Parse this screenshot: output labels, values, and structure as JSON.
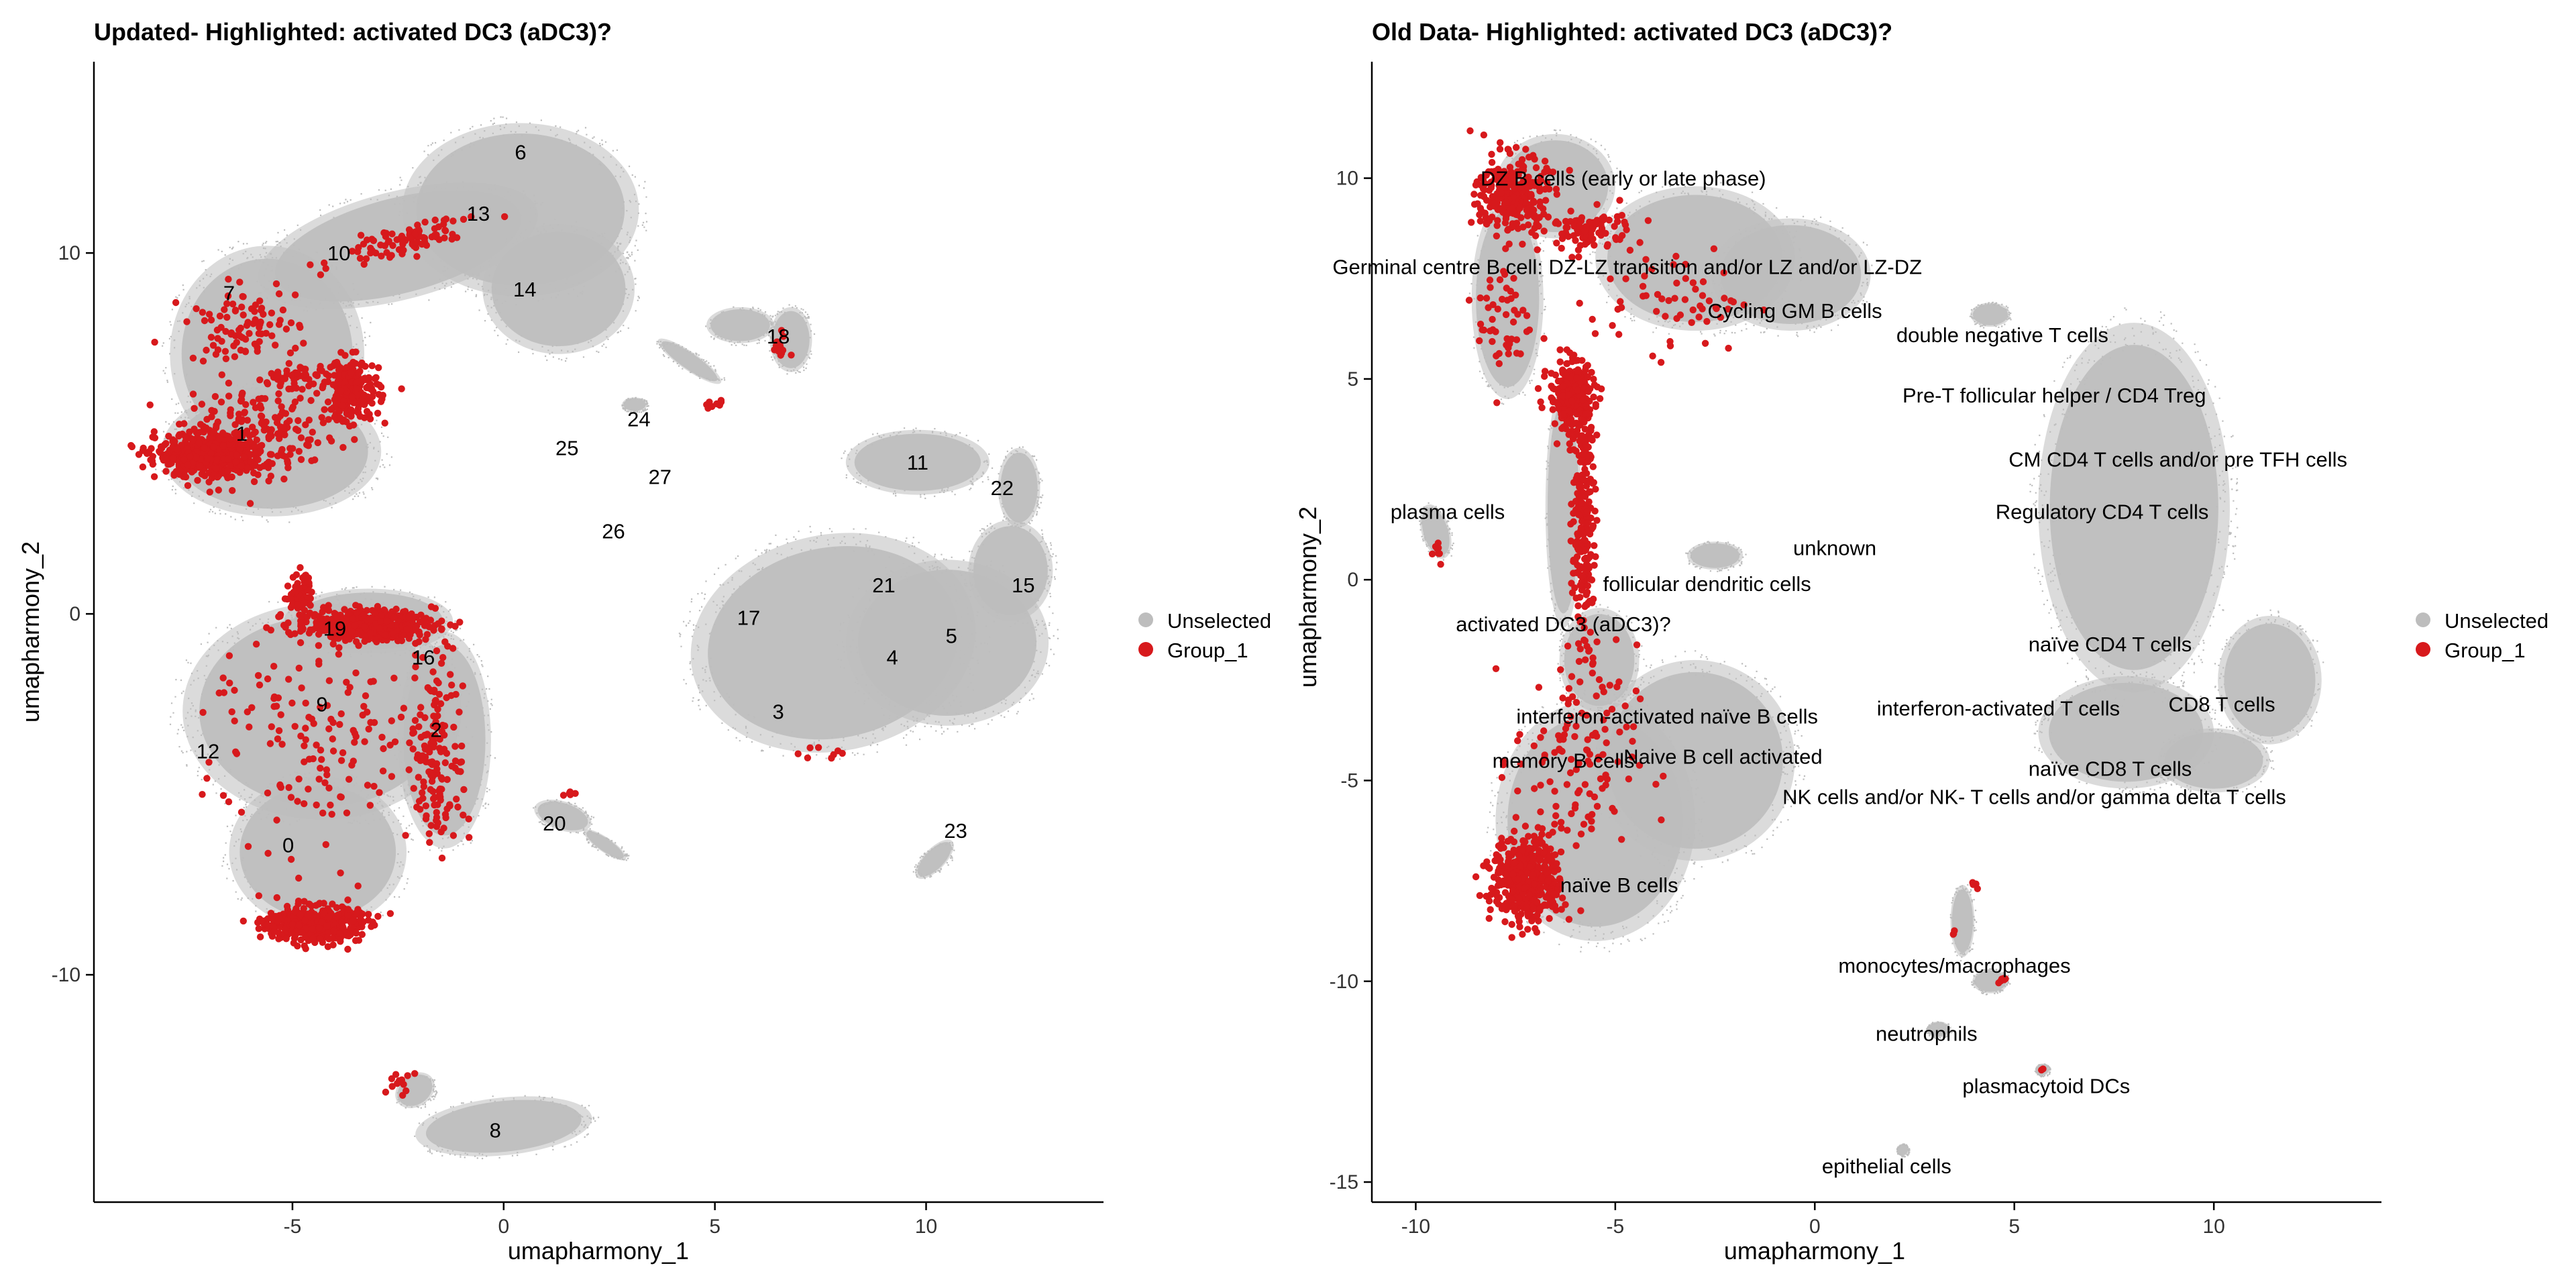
{
  "chart_data": [
    {
      "type": "scatter",
      "title": "Updated- Highlighted: activated DC3 (aDC3)?",
      "xlabel": "umapharmony_1",
      "ylabel": "umapharmony_2",
      "xlim": [
        -9.7,
        14.2
      ],
      "ylim": [
        -16.3,
        15.3
      ],
      "xticks": [
        -5,
        0,
        5,
        10
      ],
      "yticks": [
        -10,
        0,
        10
      ],
      "legend": {
        "position": "right",
        "entries": [
          {
            "label": "Unselected",
            "color": "#bdbdbd"
          },
          {
            "label": "Group_1",
            "color": "#d7191c"
          }
        ]
      },
      "grid": false,
      "clusters": [
        {
          "label": "0",
          "x": -5.1,
          "y": -6.4
        },
        {
          "label": "1",
          "x": -6.2,
          "y": 5.0
        },
        {
          "label": "2",
          "x": -1.6,
          "y": -3.2
        },
        {
          "label": "3",
          "x": 6.5,
          "y": -2.7
        },
        {
          "label": "4",
          "x": 9.2,
          "y": -1.2
        },
        {
          "label": "5",
          "x": 10.6,
          "y": -0.6
        },
        {
          "label": "6",
          "x": 0.4,
          "y": 12.8
        },
        {
          "label": "7",
          "x": -6.5,
          "y": 8.9
        },
        {
          "label": "8",
          "x": -0.2,
          "y": -14.3
        },
        {
          "label": "9",
          "x": -4.3,
          "y": -2.5
        },
        {
          "label": "10",
          "x": -3.9,
          "y": 10.0
        },
        {
          "label": "11",
          "x": 9.8,
          "y": 4.2
        },
        {
          "label": "12",
          "x": -7.0,
          "y": -3.8
        },
        {
          "label": "13",
          "x": -0.6,
          "y": 11.1
        },
        {
          "label": "14",
          "x": 0.5,
          "y": 9.0
        },
        {
          "label": "15",
          "x": 12.3,
          "y": 0.8
        },
        {
          "label": "16",
          "x": -1.9,
          "y": -1.2
        },
        {
          "label": "17",
          "x": 5.8,
          "y": -0.1
        },
        {
          "label": "18",
          "x": 6.5,
          "y": 7.7
        },
        {
          "label": "19",
          "x": -4.0,
          "y": -0.4
        },
        {
          "label": "20",
          "x": 1.2,
          "y": -5.8
        },
        {
          "label": "21",
          "x": 9.0,
          "y": 0.8
        },
        {
          "label": "22",
          "x": 11.8,
          "y": 3.5
        },
        {
          "label": "23",
          "x": 10.7,
          "y": -6.0
        },
        {
          "label": "24",
          "x": 3.2,
          "y": 5.4
        },
        {
          "label": "25",
          "x": 1.5,
          "y": 4.6
        },
        {
          "label": "26",
          "x": 2.6,
          "y": 2.3
        },
        {
          "label": "27",
          "x": 3.7,
          "y": 3.8
        }
      ]
    },
    {
      "type": "scatter",
      "title": "Old Data- Highlighted: activated DC3 (aDC3)?",
      "xlabel": "umapharmony_1",
      "ylabel": "umapharmony_2",
      "xlim": [
        -11.1,
        14.2
      ],
      "ylim": [
        -15.5,
        12.9
      ],
      "xticks": [
        -10,
        -5,
        0,
        5,
        10
      ],
      "yticks": [
        -15,
        -10,
        -5,
        0,
        5,
        10
      ],
      "legend": {
        "position": "right",
        "entries": [
          {
            "label": "Unselected",
            "color": "#bdbdbd"
          },
          {
            "label": "Group_1",
            "color": "#d7191c"
          }
        ]
      },
      "grid": false,
      "clusters": [
        {
          "label": "DZ B cells (early or late phase)",
          "x": -4.8,
          "y": 10.0
        },
        {
          "label": "Germinal centre B cell: DZ-LZ transition and/or LZ and/or LZ-DZ",
          "x": -4.7,
          "y": 7.8
        },
        {
          "label": "Cycling GM B cells",
          "x": -0.5,
          "y": 6.7
        },
        {
          "label": "double negative T cells",
          "x": 4.7,
          "y": 6.1
        },
        {
          "label": "Pre-T follicular helper / CD4 Treg",
          "x": 6.0,
          "y": 4.6
        },
        {
          "label": "CM CD4 T cells  and/or pre TFH cells",
          "x": 9.1,
          "y": 3.0
        },
        {
          "label": "plasma cells",
          "x": -9.2,
          "y": 1.7
        },
        {
          "label": "Regulatory CD4 T cells",
          "x": 7.2,
          "y": 1.7
        },
        {
          "label": "unknown",
          "x": 0.5,
          "y": 0.8
        },
        {
          "label": "follicular dendritic cells",
          "x": -2.7,
          "y": -0.1
        },
        {
          "label": "activated DC3 (aDC3)?",
          "x": -6.3,
          "y": -1.1
        },
        {
          "label": "naïve CD4 T cells",
          "x": 7.4,
          "y": -1.6
        },
        {
          "label": "interferon-activated naïve B cells",
          "x": -3.7,
          "y": -3.4
        },
        {
          "label": "interferon-activated T cells",
          "x": 4.6,
          "y": -3.2
        },
        {
          "label": "CD8 T cells",
          "x": 10.2,
          "y": -3.1
        },
        {
          "label": "memory B cells",
          "x": -6.3,
          "y": -4.5
        },
        {
          "label": "Naive B cell activated",
          "x": -2.3,
          "y": -4.4
        },
        {
          "label": "naïve CD8 T cells",
          "x": 7.4,
          "y": -4.7
        },
        {
          "label": "NK cells and/or NK- T cells and/or gamma delta T cells",
          "x": 5.5,
          "y": -5.4
        },
        {
          "label": "naïve B cells",
          "x": -4.9,
          "y": -7.6
        },
        {
          "label": "monocytes/macrophages",
          "x": 3.5,
          "y": -9.6
        },
        {
          "label": "neutrophils",
          "x": 2.8,
          "y": -11.3
        },
        {
          "label": "plasmacytoid DCs",
          "x": 5.8,
          "y": -12.6
        },
        {
          "label": "epithelial cells",
          "x": 1.8,
          "y": -14.6
        }
      ]
    }
  ]
}
